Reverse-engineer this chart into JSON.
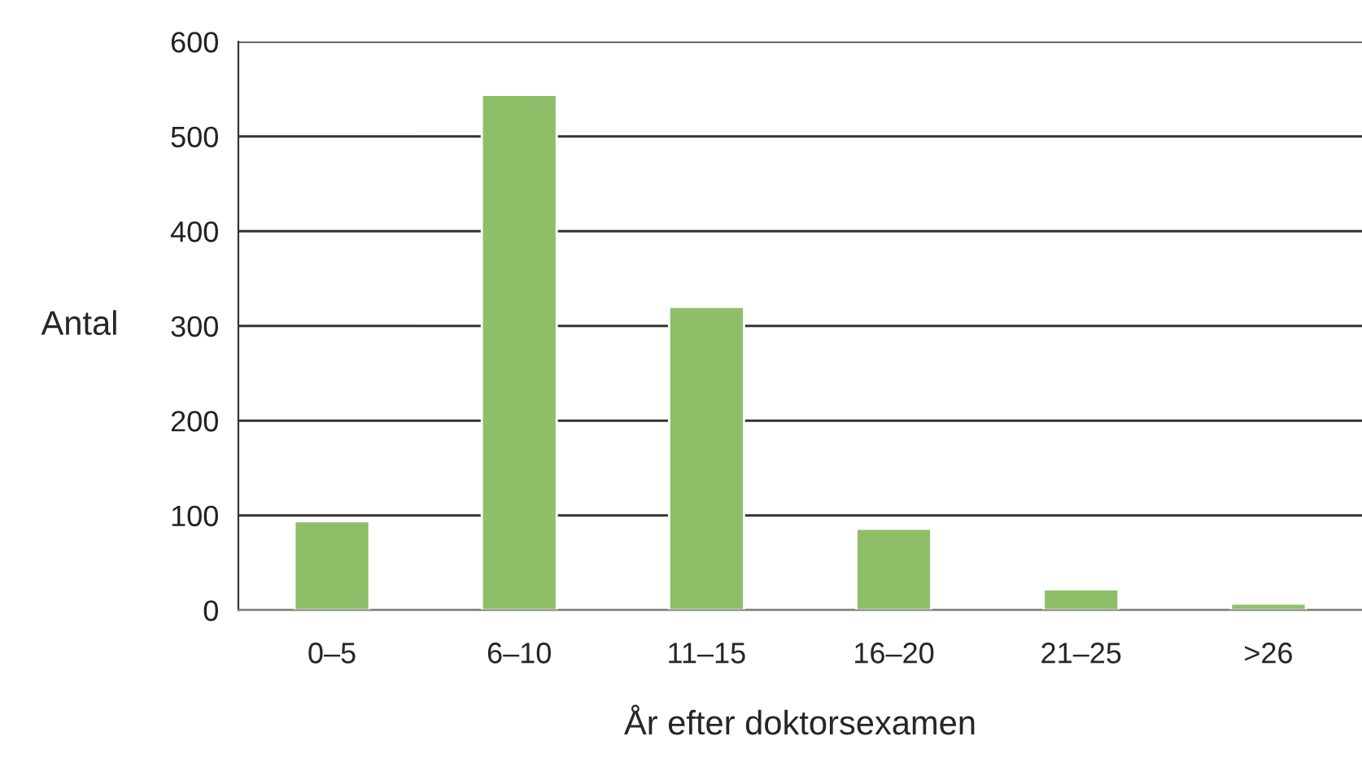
{
  "chart_data": {
    "type": "bar",
    "xlabel": "År efter doktorsexamen",
    "ylabel": "Antal",
    "categories": [
      "0–5",
      "6–10",
      "11–15",
      "16–20",
      "21–25",
      ">26"
    ],
    "values": [
      94,
      544,
      320,
      86,
      22,
      7
    ],
    "color": "#8fbe69",
    "ylim": [
      0,
      600
    ],
    "yticks": [
      0,
      100,
      200,
      300,
      400,
      500,
      600
    ],
    "grid": "y"
  }
}
